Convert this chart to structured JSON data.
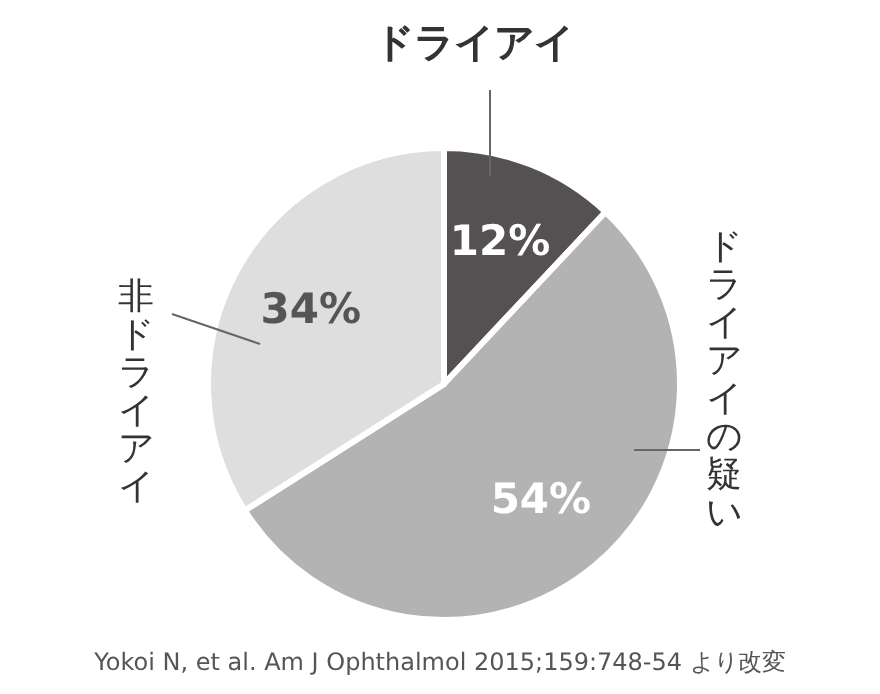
{
  "chart_data": {
    "type": "pie",
    "categories": [
      "ドライアイ",
      "ドライアイの疑い",
      "非ドライアイ"
    ],
    "values": [
      12,
      54,
      34
    ],
    "colors": [
      "#555152",
      "#b3b3b3",
      "#dedede"
    ],
    "value_labels": [
      "12%",
      "54%",
      "34%"
    ],
    "annotations": [
      "Yokoi N, et al. Am J Ophthalmol 2015;159:748-54 より改変"
    ]
  }
}
